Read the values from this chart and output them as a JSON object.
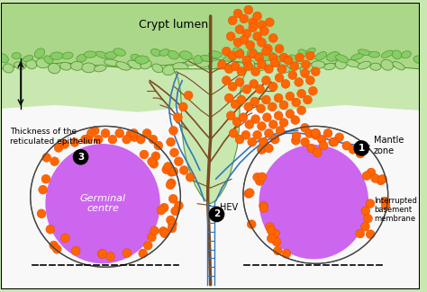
{
  "bg_color": "#c8e8b0",
  "white_bg": "#f8f8f8",
  "germinal_color": "#cc66ee",
  "orange_color": "#ff6600",
  "orange_edge": "#dd4400",
  "brown_color": "#7b4a20",
  "blue_color": "#3377bb",
  "green_leaf": "#88cc66",
  "green_epithelium": "#aad888",
  "dark_green_edge": "#559933",
  "title": "Crypt lumen",
  "thickness_label": "Thickness of the\nreticulated epithelium",
  "mantle_label": "Mantle\nzone",
  "interrupted_label": "Interrupted\nbasement\nmembrane",
  "hev_label": "HEV",
  "germinal_label": "Germinal\ncentre",
  "figsize": [
    4.74,
    3.25
  ],
  "dpi": 100
}
